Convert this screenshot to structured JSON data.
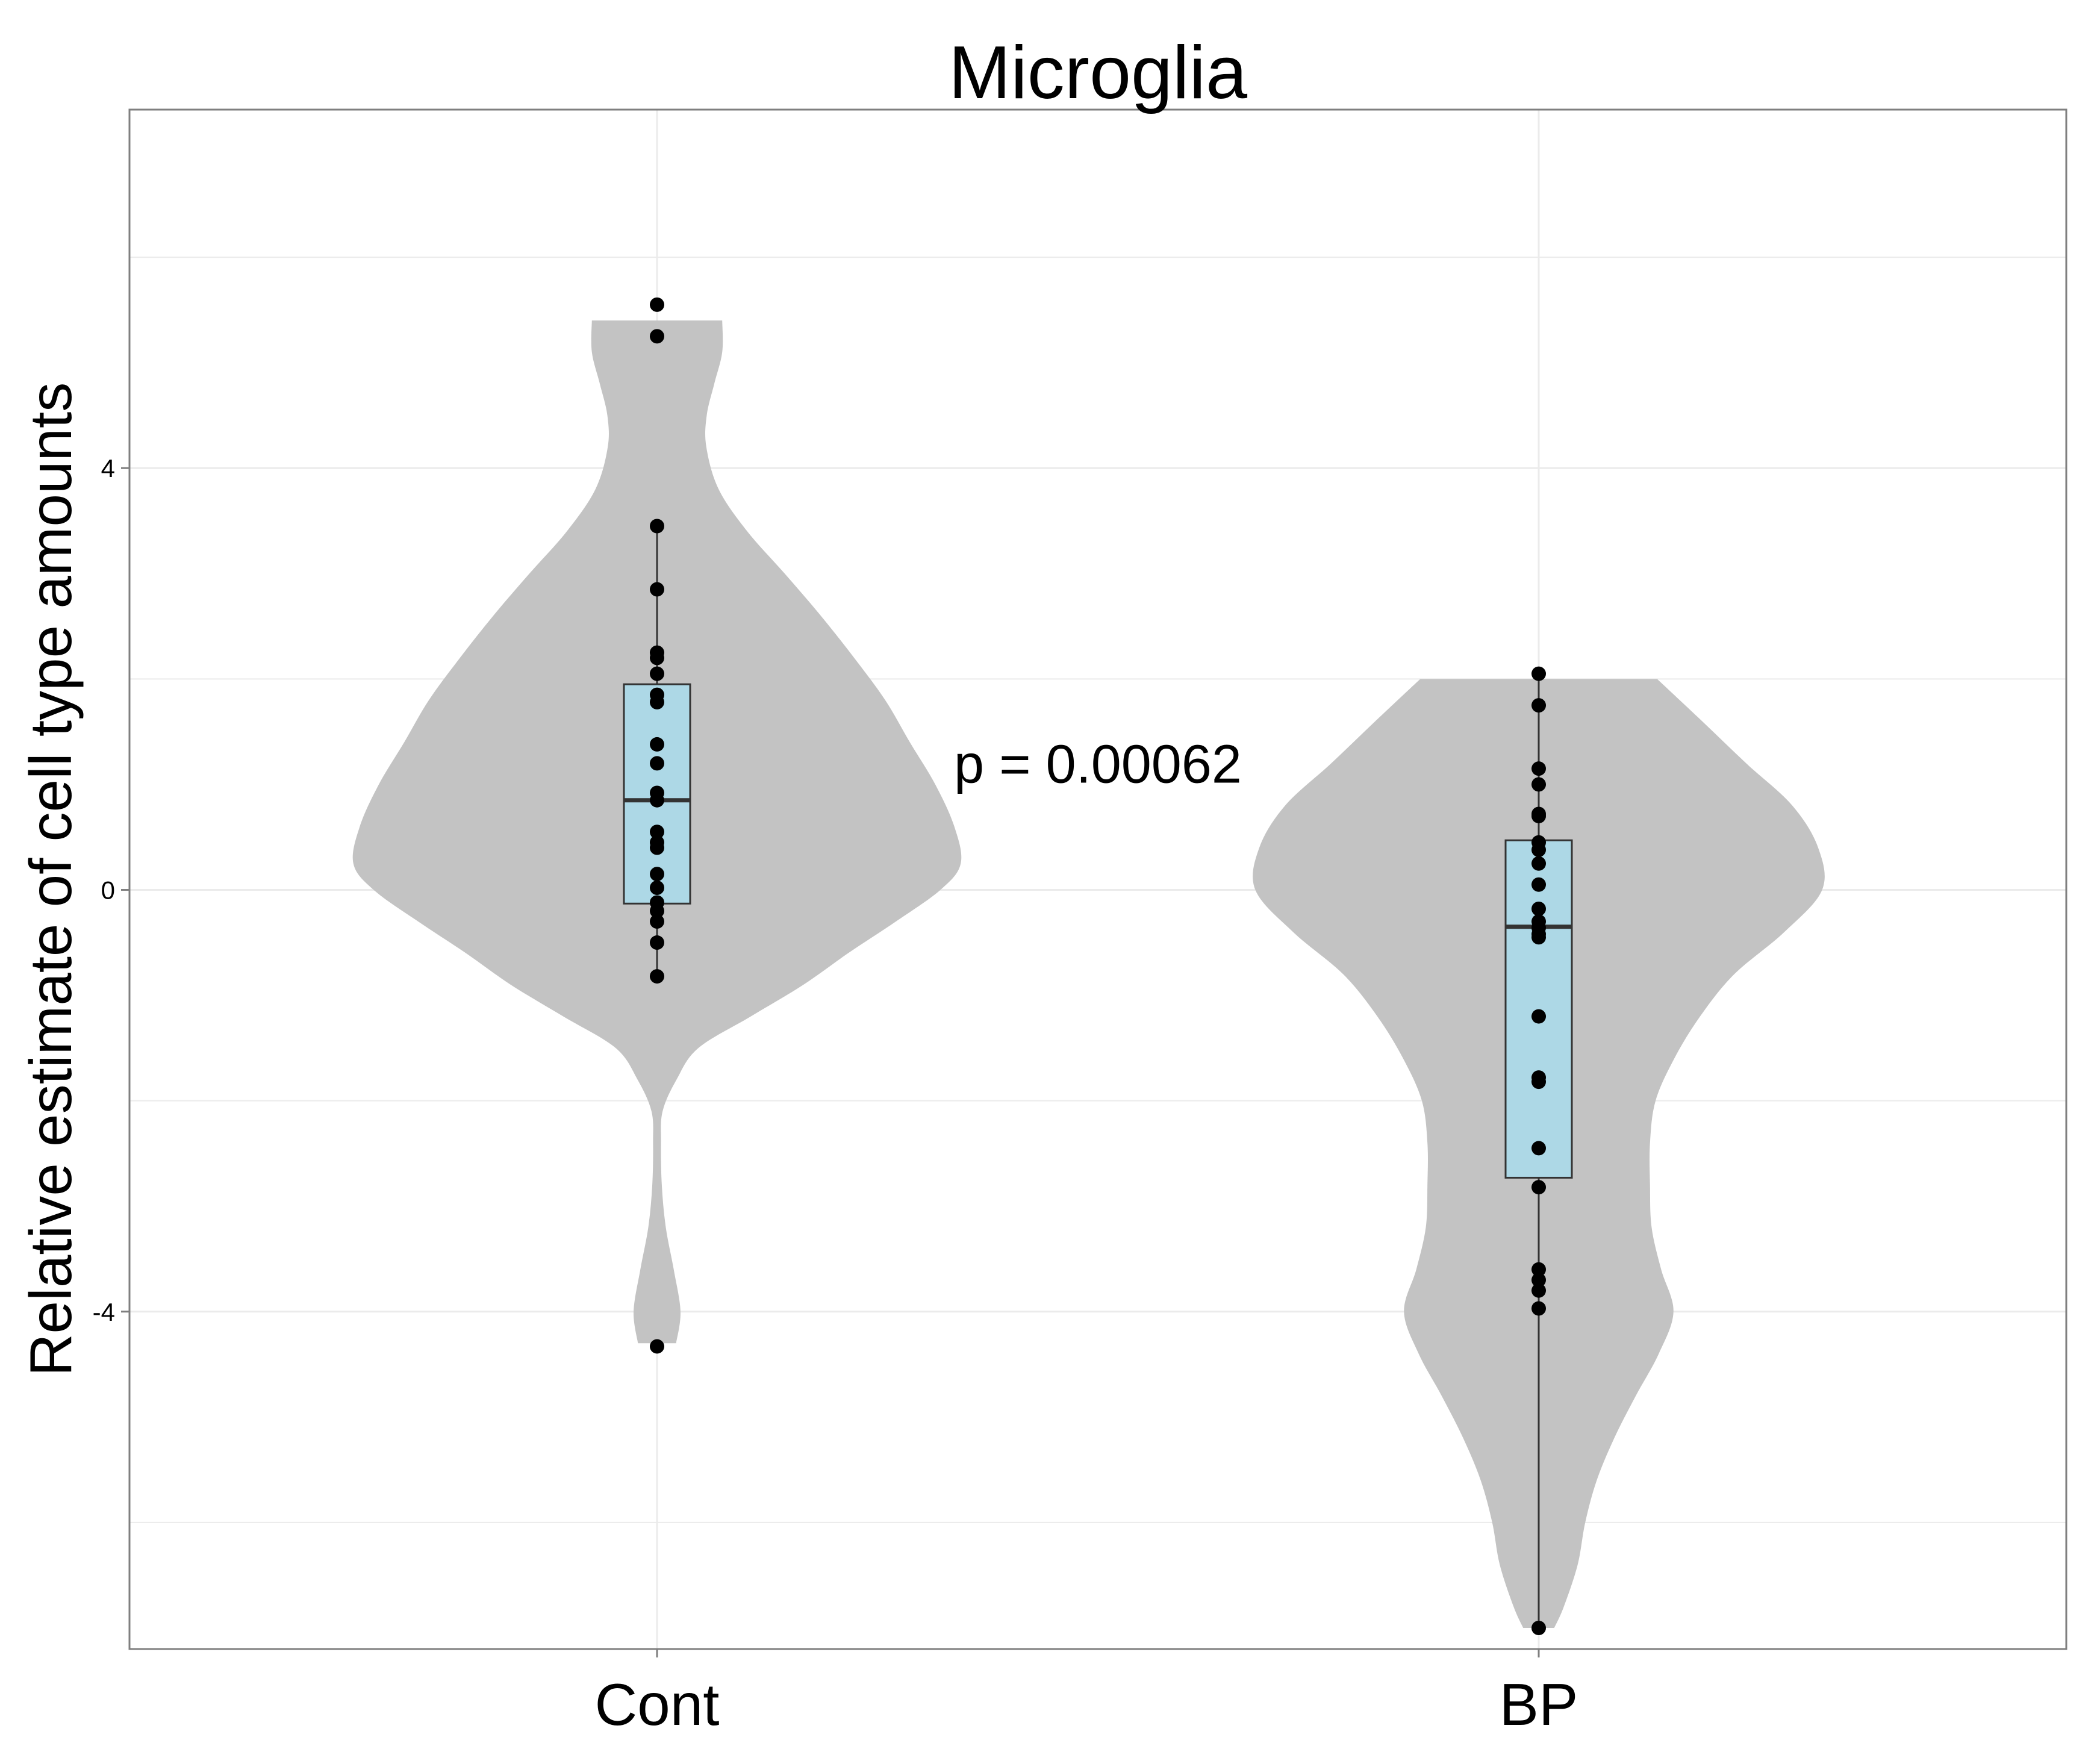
{
  "chart_data": {
    "type": "violin",
    "title": "Microglia",
    "xlabel": "",
    "ylabel": "Relative estimate of cell type amounts",
    "categories": [
      "Cont",
      "BP"
    ],
    "ylim": [
      -7.2,
      7.4
    ],
    "yticks": [
      -4,
      0,
      4
    ],
    "ytick_labels": [
      "-4",
      "0",
      "4"
    ],
    "grid": true,
    "annotation": "p = 0.00062",
    "colors": {
      "violin": "#c3c3c3",
      "box": "#add8e6",
      "points": "#000000",
      "grid": "#ebebeb",
      "panel_border": "#7f7f7f"
    },
    "groups": [
      {
        "name": "Cont",
        "box": {
          "lower_whisker": -0.82,
          "q1": -0.13,
          "median": 0.85,
          "q3": 1.95,
          "upper_whisker": 3.45
        },
        "points": [
          5.55,
          5.25,
          3.45,
          2.85,
          2.25,
          2.2,
          2.05,
          1.85,
          1.78,
          1.38,
          1.2,
          0.92,
          0.85,
          0.55,
          0.45,
          0.4,
          0.15,
          0.02,
          -0.12,
          -0.2,
          -0.3,
          -0.5,
          -0.82,
          -4.33
        ],
        "violin": {
          "y": [
            5.4,
            5.1,
            4.8,
            4.5,
            4.2,
            3.8,
            3.4,
            3.0,
            2.6,
            2.2,
            1.8,
            1.4,
            1.0,
            0.6,
            0.25,
            0.0,
            -0.3,
            -0.6,
            -0.9,
            -1.2,
            -1.5,
            -1.8,
            -2.1,
            -2.4,
            -2.8,
            -3.2,
            -3.6,
            -4.0,
            -4.3
          ],
          "density": [
            0.164,
            0.164,
            0.144,
            0.125,
            0.124,
            0.155,
            0.227,
            0.321,
            0.412,
            0.496,
            0.574,
            0.636,
            0.7,
            0.748,
            0.764,
            0.713,
            0.601,
            0.481,
            0.368,
            0.236,
            0.104,
            0.049,
            0.014,
            0.01,
            0.012,
            0.022,
            0.042,
            0.059,
            0.048
          ]
        }
      },
      {
        "name": "BP",
        "box": {
          "lower_whisker": -7.0,
          "q1": -2.73,
          "median": -0.35,
          "q3": 0.47,
          "upper_whisker": 2.05
        },
        "points": [
          2.05,
          1.75,
          1.15,
          1.0,
          0.72,
          0.7,
          0.45,
          0.38,
          0.25,
          0.05,
          -0.18,
          -0.3,
          -0.36,
          -0.42,
          -0.45,
          -1.2,
          -1.78,
          -1.82,
          -2.45,
          -2.82,
          -3.6,
          -3.7,
          -3.8,
          -3.97,
          -7.0
        ],
        "violin": {
          "y": [
            2.0,
            1.6,
            1.2,
            0.8,
            0.4,
            0.0,
            -0.4,
            -0.8,
            -1.2,
            -1.6,
            -2.0,
            -2.4,
            -2.8,
            -3.2,
            -3.6,
            -4.0,
            -4.4,
            -4.8,
            -5.2,
            -5.6,
            -6.0,
            -6.4,
            -6.8,
            -7.0
          ],
          "density": [
            0.298,
            0.411,
            0.522,
            0.638,
            0.703,
            0.713,
            0.618,
            0.492,
            0.406,
            0.341,
            0.294,
            0.28,
            0.28,
            0.284,
            0.308,
            0.339,
            0.302,
            0.244,
            0.19,
            0.146,
            0.117,
            0.098,
            0.063,
            0.039
          ]
        }
      }
    ]
  }
}
